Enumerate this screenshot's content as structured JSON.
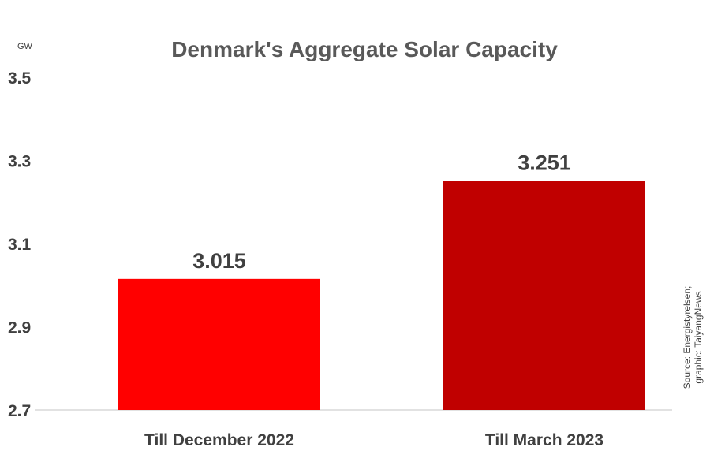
{
  "chart_data": {
    "type": "bar",
    "title": "Denmark's Aggregate Solar Capacity",
    "ylabel": "GW",
    "ylim": [
      2.7,
      3.5
    ],
    "yticks": [
      "2.7",
      "2.9",
      "3.1",
      "3.3",
      "3.5"
    ],
    "grid": false,
    "categories": [
      "Till December 2022",
      "Till March 2023"
    ],
    "values": [
      3.015,
      3.251
    ],
    "data_labels": [
      "3.015",
      "3.251"
    ],
    "colors": [
      "#ff0000",
      "#c00000"
    ],
    "source_note": [
      "Source: Energistyrelsen;",
      "graphic: TaiyangNews"
    ]
  }
}
